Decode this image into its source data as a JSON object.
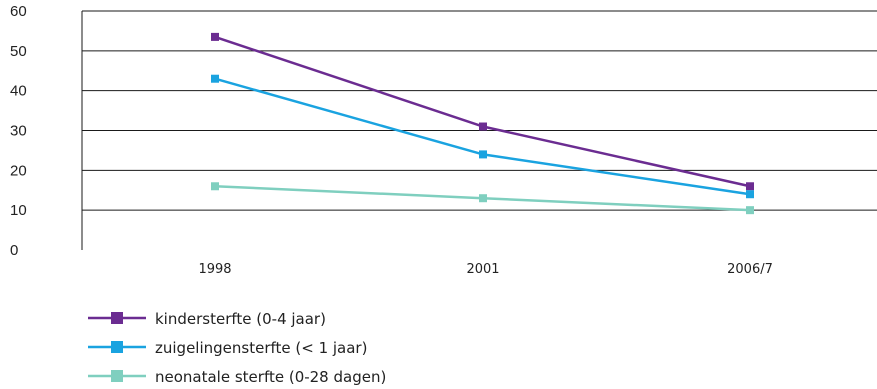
{
  "chart_data": {
    "type": "line",
    "categories": [
      "1998",
      "2001",
      "2006/7"
    ],
    "ylim": [
      0,
      60
    ],
    "yticks": [
      "0",
      "10",
      "20",
      "30",
      "40",
      "50",
      "60"
    ],
    "grid": true,
    "legend_position": "bottom-left",
    "series": [
      {
        "name": "kindersterfte (0-4 jaar)",
        "values": [
          53.5,
          31,
          16
        ],
        "color": "#6b2c91"
      },
      {
        "name": "zuigelingensterfte (< 1 jaar)",
        "values": [
          43,
          24,
          14
        ],
        "color": "#1aa3e0"
      },
      {
        "name": "neonatale sterfte (0-28 dagen)",
        "values": [
          16,
          13,
          10
        ],
        "color": "#7fcfbf"
      }
    ]
  }
}
